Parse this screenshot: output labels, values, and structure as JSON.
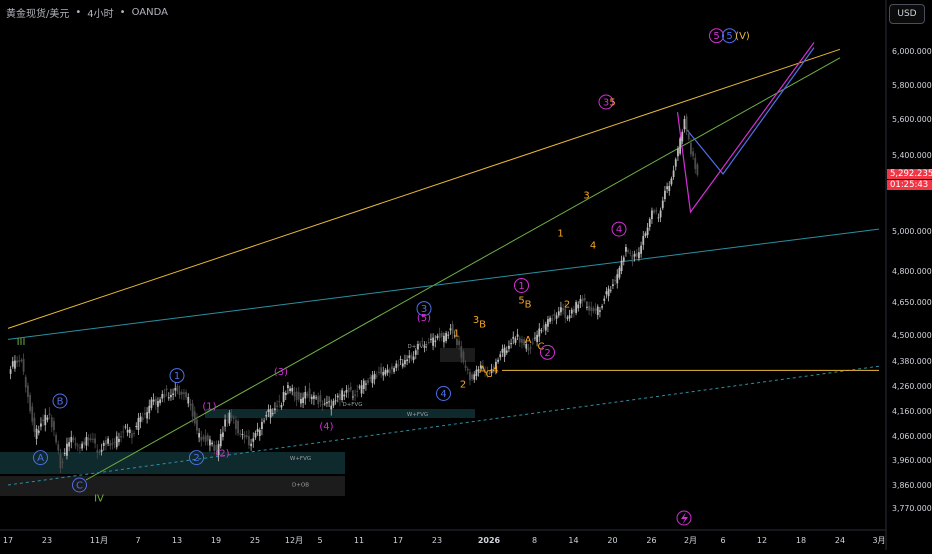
{
  "header": {
    "symbol": "黄金现货/美元",
    "interval": "4小时",
    "broker": "OANDA"
  },
  "currency_button": "USD",
  "colors": {
    "bullish": "#bcbcbc",
    "bearish": "#4d4d4d",
    "price_label": "#f23645",
    "wave_blue": "#4f6fe6",
    "wave_magenta": "#d42fd6",
    "wave_orange": "#f5a623",
    "wave_green": "#6fb043",
    "trend_yellow": "#e8b83a",
    "trend_green": "#6fb043",
    "trend_cyan": "#2b8fa3"
  },
  "last_price": {
    "price": "5,292.235",
    "countdown": "01:25:43"
  },
  "chart_data": {
    "type": "candlestick",
    "title": "黄金现货/美元 · 4小时 · OANDA",
    "ylim": [
      3700,
      6150
    ],
    "grid": false,
    "y_ticks": [
      {
        "label": "6,000.000",
        "value": 6000
      },
      {
        "label": "5,800.000",
        "value": 5800
      },
      {
        "label": "5,600.000",
        "value": 5600
      },
      {
        "label": "5,400.000",
        "value": 5400
      },
      {
        "label": "5,000.000",
        "value": 5000
      },
      {
        "label": "4,800.000",
        "value": 4800
      },
      {
        "label": "4,650.000",
        "value": 4650
      },
      {
        "label": "4,500.000",
        "value": 4500
      },
      {
        "label": "4,380.000",
        "value": 4380
      },
      {
        "label": "4,260.000",
        "value": 4260
      },
      {
        "label": "4,160.000",
        "value": 4160
      },
      {
        "label": "4,060.000",
        "value": 4060
      },
      {
        "label": "3,960.000",
        "value": 3960
      },
      {
        "label": "3,860.000",
        "value": 3860
      },
      {
        "label": "3,770.000",
        "value": 3770
      }
    ],
    "x_ticks": [
      {
        "label": "17",
        "t": 0
      },
      {
        "label": "23",
        "t": 6
      },
      {
        "label": "11月",
        "t": 14
      },
      {
        "label": "7",
        "t": 20
      },
      {
        "label": "13",
        "t": 26
      },
      {
        "label": "19",
        "t": 32
      },
      {
        "label": "25",
        "t": 38
      },
      {
        "label": "12月",
        "t": 44
      },
      {
        "label": "5",
        "t": 48
      },
      {
        "label": "11",
        "t": 54
      },
      {
        "label": "17",
        "t": 60
      },
      {
        "label": "23",
        "t": 66
      },
      {
        "label": "2026",
        "t": 74
      },
      {
        "label": "8",
        "t": 81
      },
      {
        "label": "14",
        "t": 87
      },
      {
        "label": "20",
        "t": 93
      },
      {
        "label": "26",
        "t": 99
      },
      {
        "label": "2月",
        "t": 105
      },
      {
        "label": "6",
        "t": 110
      },
      {
        "label": "12",
        "t": 116
      },
      {
        "label": "18",
        "t": 122
      },
      {
        "label": "24",
        "t": 128
      },
      {
        "label": "3月",
        "t": 134
      }
    ],
    "price_path": [
      [
        0,
        4310
      ],
      [
        1,
        4390
      ],
      [
        2,
        4370
      ],
      [
        3,
        4220
      ],
      [
        4,
        4060
      ],
      [
        5,
        4110
      ],
      [
        6,
        4150
      ],
      [
        7,
        4080
      ],
      [
        8,
        3940
      ],
      [
        9,
        4020
      ],
      [
        10,
        4050
      ],
      [
        11,
        4000
      ],
      [
        12,
        4060
      ],
      [
        13,
        4030
      ],
      [
        14,
        3990
      ],
      [
        15,
        4040
      ],
      [
        16,
        4020
      ],
      [
        17,
        4060
      ],
      [
        18,
        4090
      ],
      [
        19,
        4060
      ],
      [
        20,
        4120
      ],
      [
        21,
        4150
      ],
      [
        22,
        4190
      ],
      [
        23,
        4200
      ],
      [
        24,
        4230
      ],
      [
        25,
        4220
      ],
      [
        26,
        4250
      ],
      [
        27,
        4220
      ],
      [
        28,
        4190
      ],
      [
        29,
        4070
      ],
      [
        30,
        4050
      ],
      [
        31,
        4030
      ],
      [
        32,
        4000
      ],
      [
        33,
        4090
      ],
      [
        34,
        4150
      ],
      [
        35,
        4100
      ],
      [
        36,
        4060
      ],
      [
        37,
        4030
      ],
      [
        38,
        4060
      ],
      [
        39,
        4120
      ],
      [
        40,
        4150
      ],
      [
        41,
        4170
      ],
      [
        42,
        4200
      ],
      [
        43,
        4260
      ],
      [
        44,
        4230
      ],
      [
        45,
        4200
      ],
      [
        46,
        4230
      ],
      [
        47,
        4210
      ],
      [
        48,
        4200
      ],
      [
        49,
        4180
      ],
      [
        50,
        4200
      ],
      [
        51,
        4220
      ],
      [
        52,
        4240
      ],
      [
        53,
        4230
      ],
      [
        54,
        4250
      ],
      [
        55,
        4280
      ],
      [
        56,
        4300
      ],
      [
        57,
        4330
      ],
      [
        58,
        4320
      ],
      [
        59,
        4340
      ],
      [
        60,
        4370
      ],
      [
        61,
        4380
      ],
      [
        62,
        4400
      ],
      [
        63,
        4450
      ],
      [
        64,
        4460
      ],
      [
        65,
        4470
      ],
      [
        66,
        4500
      ],
      [
        67,
        4480
      ],
      [
        68,
        4530
      ],
      [
        69,
        4470
      ],
      [
        70,
        4370
      ],
      [
        71,
        4300
      ],
      [
        72,
        4330
      ],
      [
        73,
        4350
      ],
      [
        74,
        4310
      ],
      [
        75,
        4380
      ],
      [
        76,
        4420
      ],
      [
        77,
        4450
      ],
      [
        78,
        4500
      ],
      [
        79,
        4460
      ],
      [
        80,
        4440
      ],
      [
        81,
        4480
      ],
      [
        82,
        4530
      ],
      [
        83,
        4560
      ],
      [
        84,
        4590
      ],
      [
        85,
        4610
      ],
      [
        86,
        4580
      ],
      [
        87,
        4620
      ],
      [
        88,
        4660
      ],
      [
        89,
        4640
      ],
      [
        90,
        4600
      ],
      [
        91,
        4620
      ],
      [
        92,
        4690
      ],
      [
        93,
        4740
      ],
      [
        94,
        4800
      ],
      [
        95,
        4920
      ],
      [
        96,
        4860
      ],
      [
        97,
        4890
      ],
      [
        98,
        5000
      ],
      [
        99,
        5100
      ],
      [
        100,
        5080
      ],
      [
        101,
        5200
      ],
      [
        102,
        5280
      ],
      [
        103,
        5420
      ],
      [
        104,
        5600
      ],
      [
        105,
        5420
      ],
      [
        106,
        5292.235
      ]
    ],
    "trendlines": [
      {
        "name": "yellow-channel",
        "color": "#e8b83a",
        "from": [
          0,
          4530
        ],
        "to": [
          128,
          6010
        ]
      },
      {
        "name": "green-channel",
        "color": "#6fb043",
        "from": [
          12,
          3880
        ],
        "to": [
          128,
          5960
        ]
      },
      {
        "name": "cyan-support",
        "color": "#2b8fa3",
        "from": [
          0,
          4480
        ],
        "to": [
          134,
          5010
        ]
      },
      {
        "name": "dotted-support",
        "color": "#2b8fa3",
        "from": [
          0,
          3860
        ],
        "to": [
          134,
          4355
        ]
      },
      {
        "name": "horizontal-level",
        "color": "#e8b83a",
        "from": [
          76,
          4335
        ],
        "to": [
          134,
          4335
        ]
      }
    ],
    "wave_projections": [
      {
        "color": "#4f6fe6",
        "points": [
          [
            104,
            5560
          ],
          [
            110,
            5300
          ],
          [
            124,
            6020
          ]
        ]
      },
      {
        "color": "#d42fd6",
        "points": [
          [
            103,
            5640
          ],
          [
            105,
            5100
          ],
          [
            124,
            6050
          ]
        ]
      }
    ],
    "wave_labels": [
      {
        "text": "III",
        "t": 2,
        "price": 4470,
        "color": "#6fb043",
        "circled": false
      },
      {
        "text": "IV",
        "t": 14,
        "price": 3810,
        "color": "#6fb043",
        "circled": false
      },
      {
        "text": "A",
        "t": 5,
        "price": 3970,
        "color": "#4f6fe6",
        "circled": true
      },
      {
        "text": "B",
        "t": 8,
        "price": 4200,
        "color": "#4f6fe6",
        "circled": true
      },
      {
        "text": "C",
        "t": 11,
        "price": 3860,
        "color": "#4f6fe6",
        "circled": true
      },
      {
        "text": "1",
        "t": 26,
        "price": 4310,
        "color": "#4f6fe6",
        "circled": true
      },
      {
        "text": "2",
        "t": 29,
        "price": 3970,
        "color": "#4f6fe6",
        "circled": true
      },
      {
        "text": "(1)",
        "t": 31,
        "price": 4180,
        "color": "#d42fd6",
        "circled": false
      },
      {
        "text": "(2)",
        "t": 33,
        "price": 3990,
        "color": "#d42fd6",
        "circled": false
      },
      {
        "text": "(3)",
        "t": 42,
        "price": 4330,
        "color": "#d42fd6",
        "circled": false
      },
      {
        "text": "(4)",
        "t": 49,
        "price": 4100,
        "color": "#d42fd6",
        "circled": false
      },
      {
        "text": "(5)",
        "t": 64,
        "price": 4580,
        "color": "#d42fd6",
        "circled": false
      },
      {
        "text": "3",
        "t": 64,
        "price": 4620,
        "color": "#4f6fe6",
        "circled": true
      },
      {
        "text": "4",
        "t": 67,
        "price": 4230,
        "color": "#4f6fe6",
        "circled": true
      },
      {
        "text": "1",
        "t": 69,
        "price": 4510,
        "color": "#f5a623",
        "circled": false
      },
      {
        "text": "2",
        "t": 70,
        "price": 4270,
        "color": "#f5a623",
        "circled": false
      },
      {
        "text": "3",
        "t": 72,
        "price": 4570,
        "color": "#f5a623",
        "circled": false
      },
      {
        "text": "B",
        "t": 73,
        "price": 4550,
        "color": "#f5a623",
        "circled": false
      },
      {
        "text": "A",
        "t": 73,
        "price": 4340,
        "color": "#f5a623",
        "circled": false
      },
      {
        "text": "C",
        "t": 74,
        "price": 4320,
        "color": "#f5a623",
        "circled": false
      },
      {
        "text": "4",
        "t": 75,
        "price": 4340,
        "color": "#f5a623",
        "circled": false
      },
      {
        "text": "5",
        "t": 79,
        "price": 4660,
        "color": "#f5a623",
        "circled": false
      },
      {
        "text": "B",
        "t": 80,
        "price": 4640,
        "color": "#f5a623",
        "circled": false
      },
      {
        "text": "1",
        "t": 79,
        "price": 4730,
        "color": "#d42fd6",
        "circled": true
      },
      {
        "text": "A",
        "t": 80,
        "price": 4480,
        "color": "#f5a623",
        "circled": false
      },
      {
        "text": "C",
        "t": 82,
        "price": 4450,
        "color": "#f5a623",
        "circled": false
      },
      {
        "text": "2",
        "t": 83,
        "price": 4420,
        "color": "#d42fd6",
        "circled": true
      },
      {
        "text": "1",
        "t": 85,
        "price": 4990,
        "color": "#f5a623",
        "circled": false
      },
      {
        "text": "2",
        "t": 86,
        "price": 4640,
        "color": "#f5a623",
        "circled": false
      },
      {
        "text": "3",
        "t": 89,
        "price": 5190,
        "color": "#f5a623",
        "circled": false
      },
      {
        "text": "4",
        "t": 90,
        "price": 4930,
        "color": "#f5a623",
        "circled": false
      },
      {
        "text": "3",
        "t": 92,
        "price": 5700,
        "color": "#d42fd6",
        "circled": true
      },
      {
        "text": "5",
        "t": 93,
        "price": 5700,
        "color": "#f5a623",
        "circled": false
      },
      {
        "text": "4",
        "t": 94,
        "price": 5010,
        "color": "#d42fd6",
        "circled": true
      },
      {
        "text": "5",
        "t": 109,
        "price": 6090,
        "color": "#d42fd6",
        "circled": true
      },
      {
        "text": "5",
        "t": 111,
        "price": 6090,
        "color": "#4f6fe6",
        "circled": true
      },
      {
        "text": "(V)",
        "t": 113,
        "price": 6090,
        "color": "#e8b83a",
        "circled": false
      }
    ],
    "zone_labels": [
      {
        "text": "D+FVG",
        "t": 63,
        "price": 4440
      },
      {
        "text": "D+FVG",
        "t": 53,
        "price": 4180
      },
      {
        "text": "W+FVG",
        "t": 63,
        "price": 4140
      },
      {
        "text": "W+FVG",
        "t": 45,
        "price": 3960
      },
      {
        "text": "D+OB",
        "t": 45,
        "price": 3855
      }
    ],
    "flash_icon": {
      "t": 94,
      "price": 3730,
      "color": "#d42fd6"
    }
  }
}
